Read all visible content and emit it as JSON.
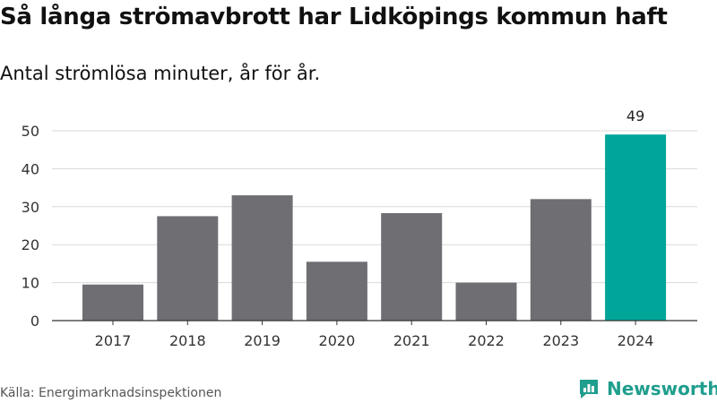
{
  "header": {
    "title": "Så långa strömavbrott har Lidköpings kommun haft",
    "subtitle": "Antal strömlösa minuter, år för år."
  },
  "footer": {
    "source": "Källa: Energimarknadsinspektionen",
    "brand": "Newsworthy"
  },
  "colors": {
    "bar_default": "#6f6e73",
    "bar_highlight": "#00a59a",
    "brand": "#1f9e8e",
    "grid": "#d9d9d9",
    "axis": "#333333"
  },
  "chart_data": {
    "type": "bar",
    "title": "Så långa strömavbrott har Lidköpings kommun haft",
    "subtitle": "Antal strömlösa minuter, år för år.",
    "xlabel": "",
    "ylabel": "",
    "categories": [
      "2017",
      "2018",
      "2019",
      "2020",
      "2021",
      "2022",
      "2023",
      "2024"
    ],
    "values": [
      9.5,
      27.5,
      33,
      15.5,
      28.3,
      10,
      32,
      49
    ],
    "highlight_index": 7,
    "data_labels": [
      {
        "index": 7,
        "text": "49"
      }
    ],
    "ylim": [
      0,
      50
    ],
    "yticks": [
      0,
      10,
      20,
      30,
      40,
      50
    ],
    "grid": true,
    "legend": "none"
  }
}
